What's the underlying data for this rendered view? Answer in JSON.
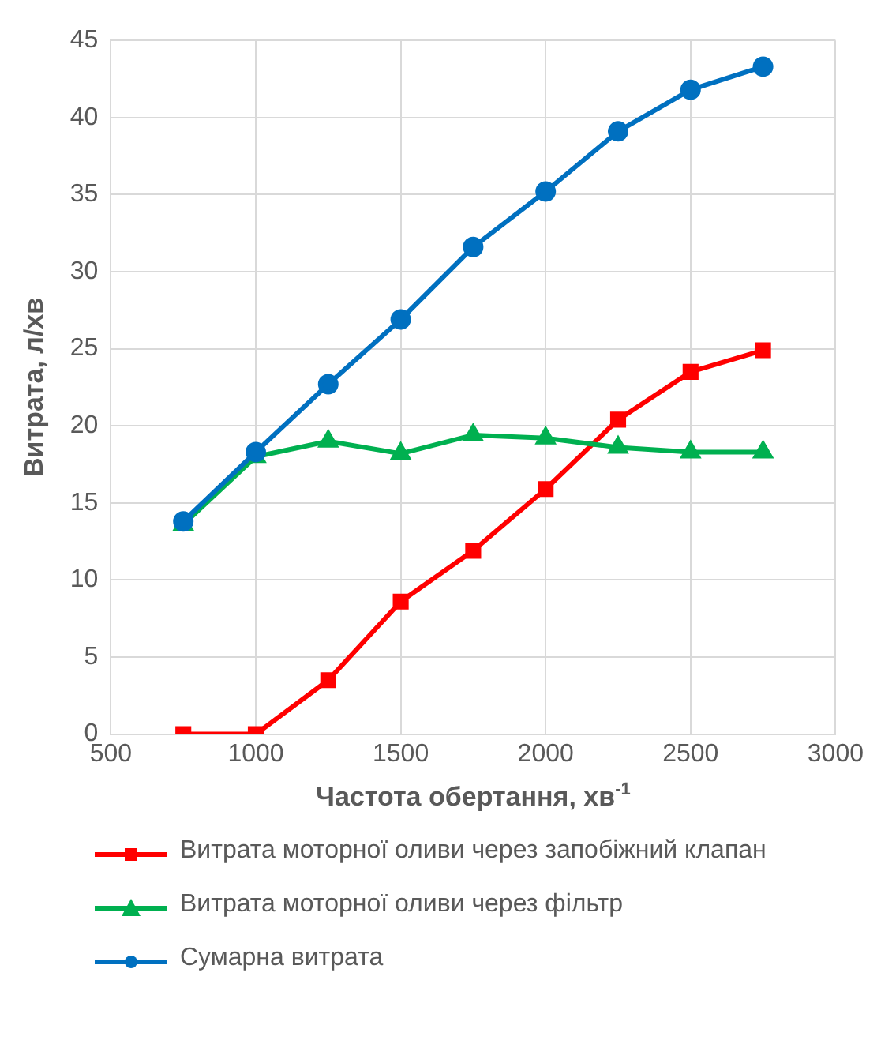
{
  "chart_data": {
    "type": "line",
    "xlabel": "Частота обертання, хв$^{-1}$",
    "ylabel": "Витрата, л/хв",
    "x": [
      750,
      1000,
      1250,
      1500,
      1750,
      2000,
      2250,
      2500,
      2750
    ],
    "xlim": [
      500,
      3000
    ],
    "xticks": [
      500,
      1000,
      1500,
      2000,
      2500,
      3000
    ],
    "ylim": [
      0,
      45
    ],
    "yticks": [
      0,
      5,
      10,
      15,
      20,
      25,
      30,
      35,
      40,
      45
    ],
    "grid": true,
    "legend": "bottom",
    "series": [
      {
        "name": "Витрата моторної оливи через запобіжний клапан",
        "color": "#ff0000",
        "marker": "square",
        "values": [
          0,
          0,
          3.5,
          8.6,
          11.9,
          15.9,
          20.4,
          23.5,
          24.9
        ]
      },
      {
        "name": "Витрата моторної оливи через фільтр",
        "color": "#00b050",
        "marker": "triangle",
        "values": [
          13.6,
          18,
          19,
          18.2,
          19.4,
          19.2,
          18.6,
          18.3,
          18.3
        ]
      },
      {
        "name": "Сумарна витрата",
        "color": "#0070c0",
        "marker": "circle",
        "values": [
          13.8,
          18.3,
          22.7,
          26.9,
          31.6,
          35.2,
          39.1,
          41.8,
          43.3
        ]
      }
    ]
  }
}
